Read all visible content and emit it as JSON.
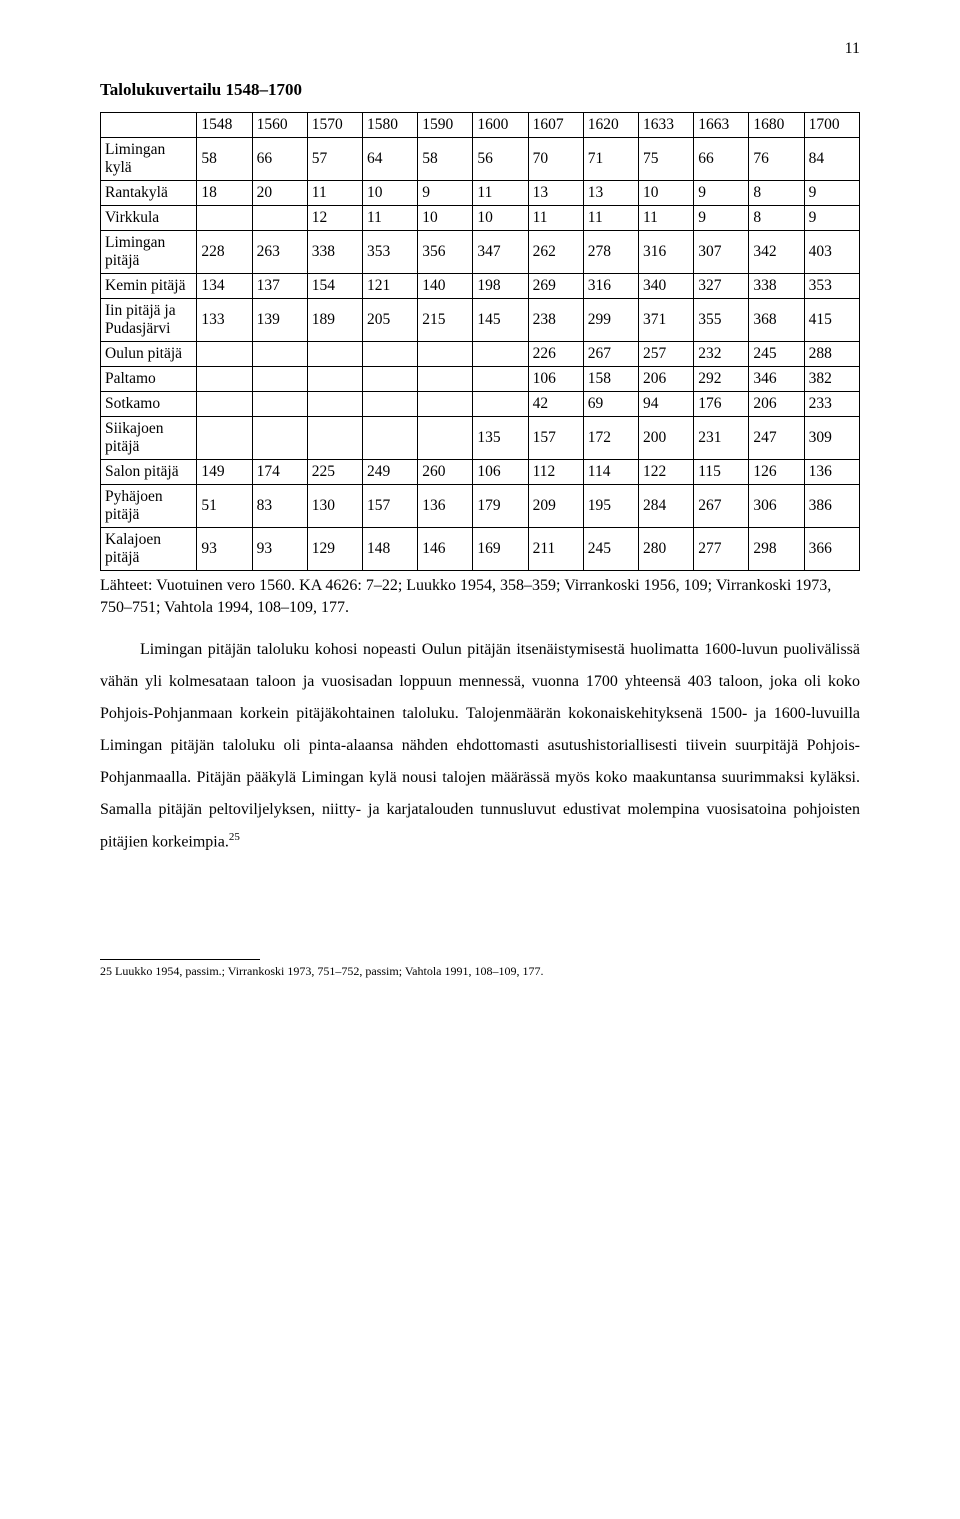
{
  "page_number": "11",
  "title": "Talolukuvertailu 1548–1700",
  "table": {
    "headers": [
      "",
      "1548",
      "1560",
      "1570",
      "1580",
      "1590",
      "1600",
      "1607",
      "1620",
      "1633",
      "1663",
      "1680",
      "1700"
    ],
    "rows": [
      {
        "label": "Limingan kylä",
        "cells": [
          "58",
          "66",
          "57",
          "64",
          "58",
          "56",
          "70",
          "71",
          "75",
          "66",
          "76",
          "84"
        ]
      },
      {
        "label": "Rantakylä",
        "cells": [
          "18",
          "20",
          "11",
          "10",
          "9",
          "11",
          "13",
          "13",
          "10",
          "9",
          "8",
          "9"
        ]
      },
      {
        "label": "Virkkula",
        "cells": [
          "",
          "",
          "12",
          "11",
          "10",
          "10",
          "11",
          "11",
          "11",
          "9",
          "8",
          "9"
        ]
      },
      {
        "label": "Limingan pitäjä",
        "cells": [
          "228",
          "263",
          "338",
          "353",
          "356",
          "347",
          "262",
          "278",
          "316",
          "307",
          "342",
          "403"
        ]
      },
      {
        "label": "Kemin pitäjä",
        "cells": [
          "134",
          "137",
          "154",
          "121",
          "140",
          "198",
          "269",
          "316",
          "340",
          "327",
          "338",
          "353"
        ]
      },
      {
        "label": "Iin pitäjä ja Pudasjärvi",
        "cells": [
          "133",
          "139",
          "189",
          "205",
          "215",
          "145",
          "238",
          "299",
          "371",
          "355",
          "368",
          "415"
        ]
      },
      {
        "label": "Oulun pitäjä",
        "cells": [
          "",
          "",
          "",
          "",
          "",
          "",
          "226",
          "267",
          "257",
          "232",
          "245",
          "288"
        ]
      },
      {
        "label": "Paltamo",
        "cells": [
          "",
          "",
          "",
          "",
          "",
          "",
          "106",
          "158",
          "206",
          "292",
          "346",
          "382"
        ]
      },
      {
        "label": "Sotkamo",
        "cells": [
          "",
          "",
          "",
          "",
          "",
          "",
          "42",
          "69",
          "94",
          "176",
          "206",
          "233"
        ]
      },
      {
        "label": "Siikajoen pitäjä",
        "cells": [
          "",
          "",
          "",
          "",
          "",
          "135",
          "157",
          "172",
          "200",
          "231",
          "247",
          "309"
        ]
      },
      {
        "label": "Salon pitäjä",
        "cells": [
          "149",
          "174",
          "225",
          "249",
          "260",
          "106",
          "112",
          "114",
          "122",
          "115",
          "126",
          "136"
        ]
      },
      {
        "label": "Pyhäjoen pitäjä",
        "cells": [
          "51",
          "83",
          "130",
          "157",
          "136",
          "179",
          "209",
          "195",
          "284",
          "267",
          "306",
          "386"
        ]
      },
      {
        "label": "Kalajoen pitäjä",
        "cells": [
          "93",
          "93",
          "129",
          "148",
          "146",
          "169",
          "211",
          "245",
          "280",
          "277",
          "298",
          "366"
        ]
      }
    ]
  },
  "caption": "Lähteet: Vuotuinen vero 1560. KA 4626: 7–22; Luukko 1954, 358–359; Virrankoski 1956, 109; Virrankoski 1973, 750–751; Vahtola 1994, 108–109, 177.",
  "paragraph": "Limingan pitäjän taloluku kohosi nopeasti Oulun pitäjän itsenäistymisestä huolimatta 1600-luvun puolivälissä vähän yli kolmesataan taloon ja vuosisadan loppuun mennessä, vuonna 1700 yhteensä 403 taloon, joka oli koko Pohjois-Pohjanmaan korkein pitäjäkohtainen taloluku. Talojenmäärän kokonaiskehityksenä 1500- ja 1600-luvuilla Limingan pitäjän taloluku oli pinta-alaansa nähden ehdottomasti asutushistoriallisesti tiivein suurpitäjä Pohjois-Pohjanmaalla. Pitäjän pääkylä Limingan kylä nousi talojen määrässä myös koko maakuntansa suurimmaksi kyläksi. Samalla pitäjän peltoviljelyksen, niitty- ja karjatalouden tunnusluvut edustivat molempina vuosisatoina pohjoisten pitäjien korkeimpia.",
  "footnote_ref": "25",
  "footnote": "25  Luukko 1954, passim.; Virrankoski 1973, 751–752, passim; Vahtola 1991, 108–109, 177."
}
